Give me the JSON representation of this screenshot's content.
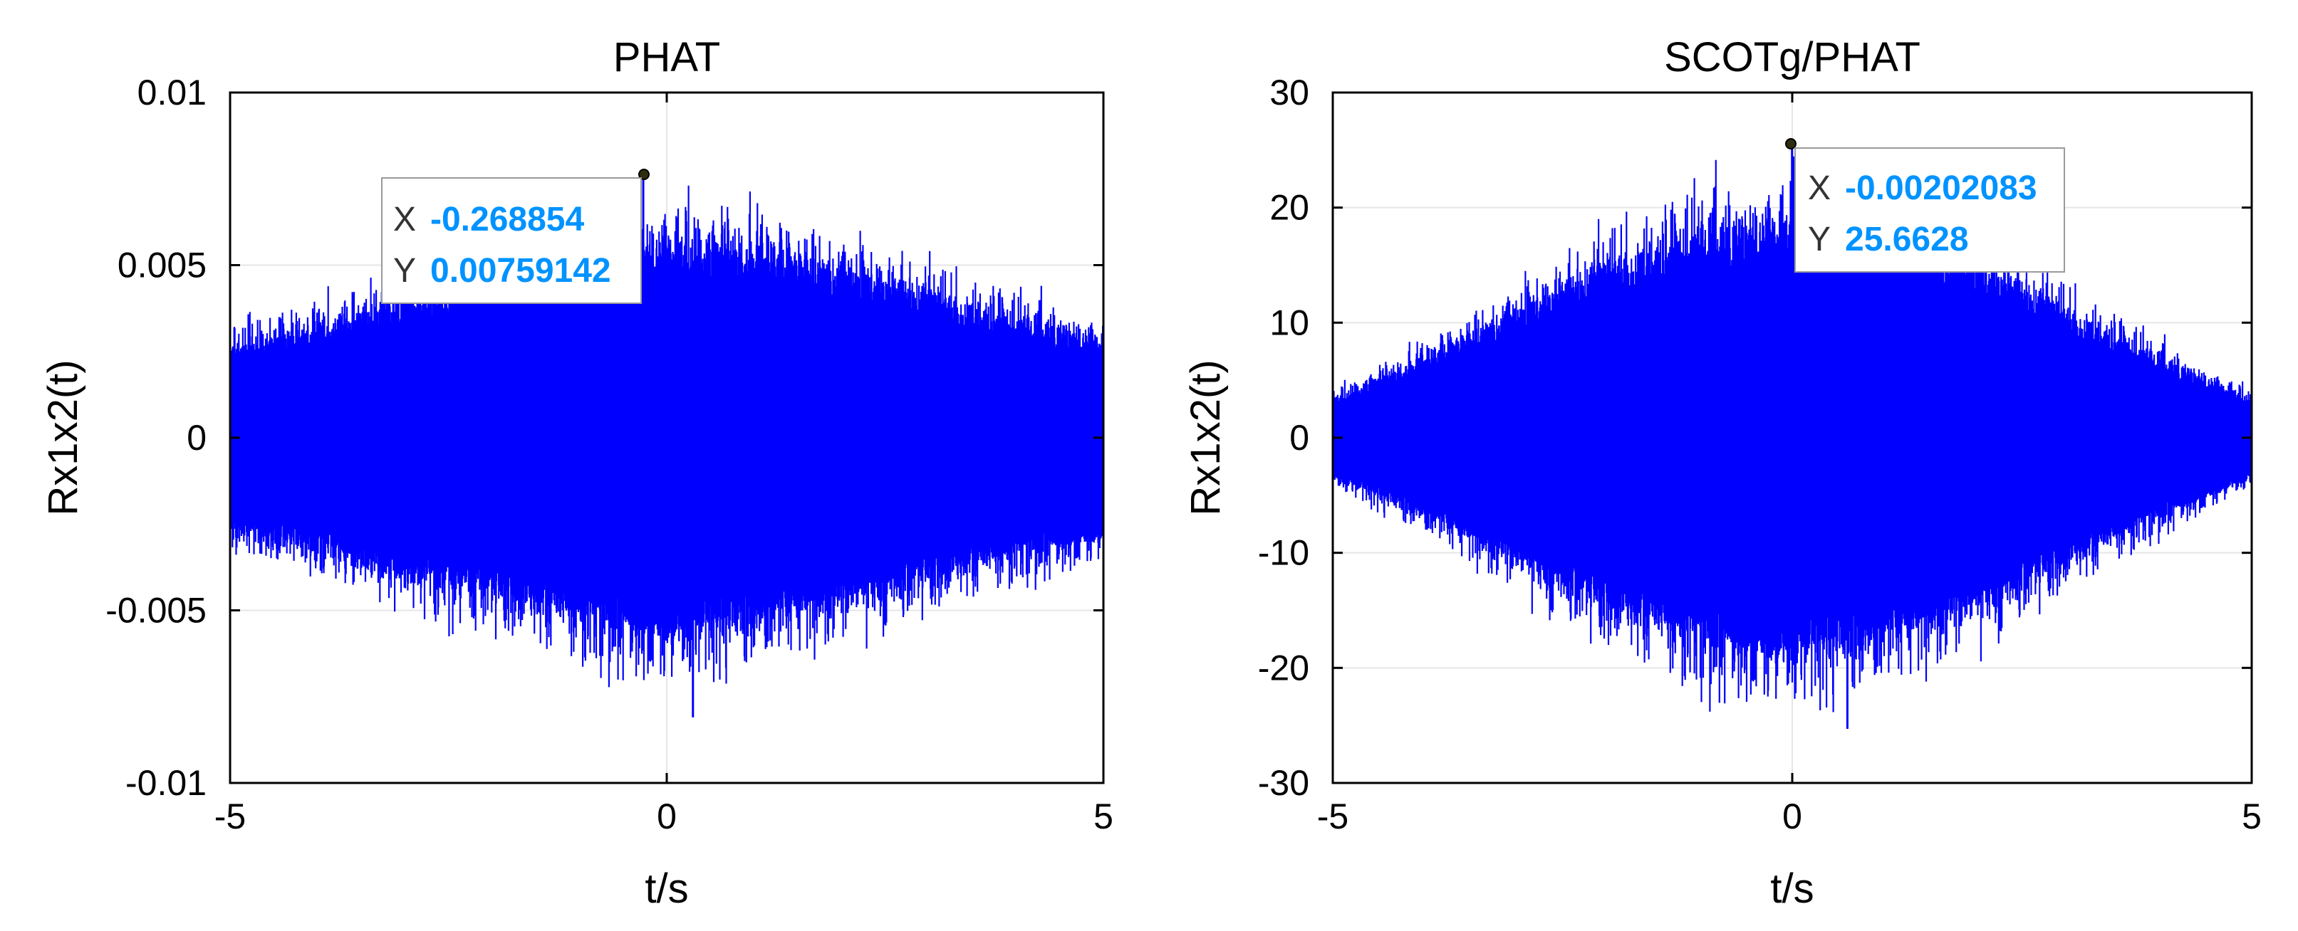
{
  "colors": {
    "signal": "#0000ff",
    "grid": "#e6e6e6",
    "axis": "#000000",
    "datatip_value": "#0093ff",
    "marker": "#2e2e0e"
  },
  "chart_data": [
    {
      "type": "line",
      "title": "PHAT",
      "xlabel": "t/s",
      "ylabel": "Rx1x2(t)",
      "xlim": [
        -5,
        5
      ],
      "ylim": [
        -0.01,
        0.01
      ],
      "xticks": [
        -5,
        0,
        5
      ],
      "xtick_labels": [
        "-5",
        "0",
        "5"
      ],
      "yticks": [
        -0.01,
        -0.005,
        0,
        0.005,
        0.01
      ],
      "ytick_labels": [
        "-0.01",
        "-0.005",
        "0",
        "0.005",
        "0.01"
      ],
      "grid": true,
      "series": [
        {
          "envelope_t": [
            -5,
            -4,
            -3,
            -2,
            -1,
            0,
            1,
            2,
            3,
            4,
            5
          ],
          "envelope_amplitude": [
            0.0023,
            0.0028,
            0.0035,
            0.004,
            0.0046,
            0.005,
            0.0047,
            0.0042,
            0.0036,
            0.003,
            0.0025
          ],
          "peak": {
            "x": -0.268854,
            "y": 0.00759142
          },
          "min": {
            "x": 0.3,
            "y": -0.0081
          }
        }
      ],
      "datatip": {
        "x_key": "X",
        "x_value": "-0.268854",
        "y_key": "Y",
        "y_value": "0.00759142"
      }
    },
    {
      "type": "line",
      "title": "SCOTg/PHAT",
      "xlabel": "t/s",
      "ylabel": "Rx1x2(t)",
      "xlim": [
        -5,
        5
      ],
      "ylim": [
        -30,
        30
      ],
      "xticks": [
        -5,
        0,
        5
      ],
      "xtick_labels": [
        "-5",
        "0",
        "5"
      ],
      "yticks": [
        -30,
        -20,
        -10,
        0,
        10,
        20,
        30
      ],
      "ytick_labels": [
        "-30",
        "-20",
        "-10",
        "0",
        "10",
        "20",
        "30"
      ],
      "grid": true,
      "series": [
        {
          "envelope_t": [
            -5,
            -4,
            -3,
            -2,
            -1,
            0,
            1,
            2,
            3,
            4,
            5
          ],
          "envelope_amplitude": [
            3,
            6,
            9.5,
            13,
            15.5,
            16.5,
            15.5,
            13,
            9.5,
            6,
            3
          ],
          "peak": {
            "x": -0.00202083,
            "y": 25.6628
          },
          "min": {
            "x": 0.6,
            "y": -25.3
          }
        }
      ],
      "datatip": {
        "x_key": "X",
        "x_value": "-0.00202083",
        "y_key": "Y",
        "y_value": "25.6628"
      }
    }
  ]
}
